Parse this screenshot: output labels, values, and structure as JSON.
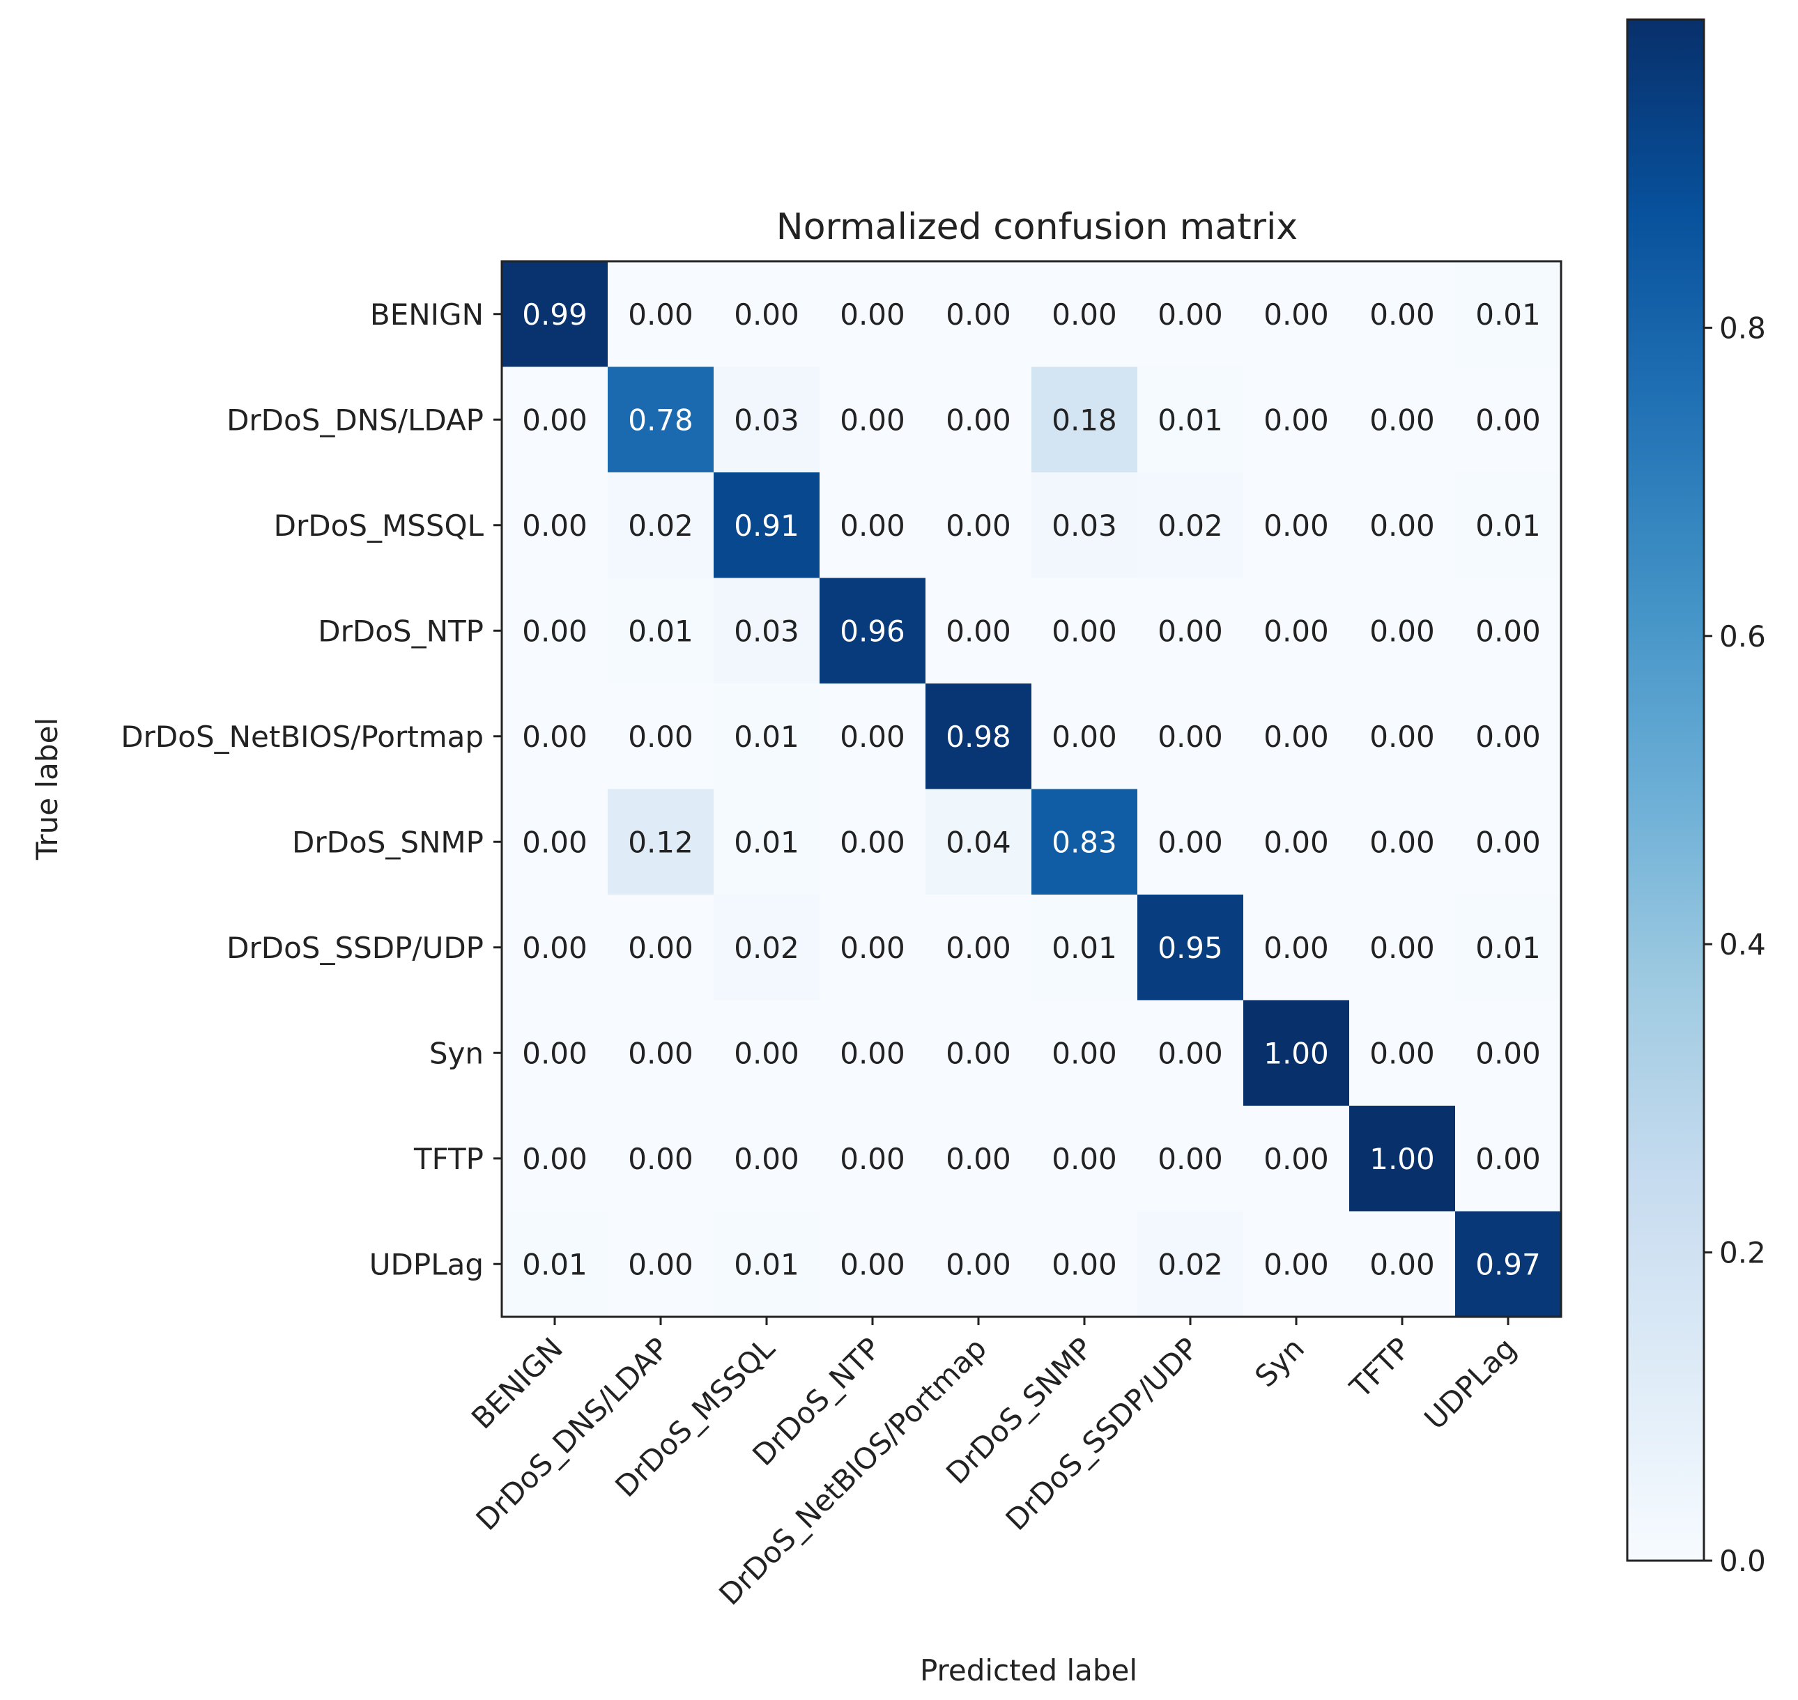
{
  "chart_data": {
    "type": "heatmap",
    "title": "Normalized confusion matrix",
    "xlabel": "Predicted label",
    "ylabel": "True label",
    "categories": [
      "BENIGN",
      "DrDoS_DNS/LDAP",
      "DrDoS_MSSQL",
      "DrDoS_NTP",
      "DrDoS_NetBIOS/Portmap",
      "DrDoS_SNMP",
      "DrDoS_SSDP/UDP",
      "Syn",
      "TFTP",
      "UDPLag"
    ],
    "matrix": [
      [
        0.99,
        0.0,
        0.0,
        0.0,
        0.0,
        0.0,
        0.0,
        0.0,
        0.0,
        0.01
      ],
      [
        0.0,
        0.78,
        0.03,
        0.0,
        0.0,
        0.18,
        0.01,
        0.0,
        0.0,
        0.0
      ],
      [
        0.0,
        0.02,
        0.91,
        0.0,
        0.0,
        0.03,
        0.02,
        0.0,
        0.0,
        0.01
      ],
      [
        0.0,
        0.01,
        0.03,
        0.96,
        0.0,
        0.0,
        0.0,
        0.0,
        0.0,
        0.0
      ],
      [
        0.0,
        0.0,
        0.01,
        0.0,
        0.98,
        0.0,
        0.0,
        0.0,
        0.0,
        0.0
      ],
      [
        0.0,
        0.12,
        0.01,
        0.0,
        0.04,
        0.83,
        0.0,
        0.0,
        0.0,
        0.0
      ],
      [
        0.0,
        0.0,
        0.02,
        0.0,
        0.0,
        0.01,
        0.95,
        0.0,
        0.0,
        0.01
      ],
      [
        0.0,
        0.0,
        0.0,
        0.0,
        0.0,
        0.0,
        0.0,
        1.0,
        0.0,
        0.0
      ],
      [
        0.0,
        0.0,
        0.0,
        0.0,
        0.0,
        0.0,
        0.0,
        0.0,
        1.0,
        0.0
      ],
      [
        0.01,
        0.0,
        0.01,
        0.0,
        0.0,
        0.0,
        0.02,
        0.0,
        0.0,
        0.97
      ]
    ],
    "colorbar": {
      "range": [
        0.0,
        1.0
      ],
      "ticks": [
        0.0,
        0.2,
        0.4,
        0.6,
        0.8
      ],
      "tick_labels": [
        "0.0",
        "0.2",
        "0.4",
        "0.6",
        "0.8"
      ],
      "colormap": "Blues"
    },
    "grid": false,
    "text_threshold": 0.5
  },
  "colors": {
    "low": "#f7fbff",
    "high": "#08306b",
    "text_dark": "#222222",
    "text_light": "#ffffff",
    "axis": "#222222"
  }
}
